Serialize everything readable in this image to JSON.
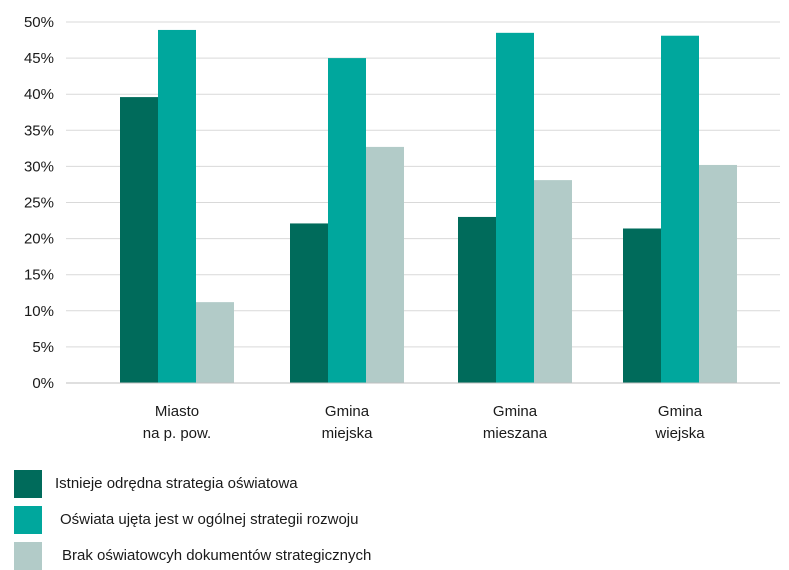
{
  "chart_data": {
    "type": "bar",
    "title": "",
    "xlabel": "",
    "ylabel": "",
    "ylim": [
      0,
      50
    ],
    "yticks": [
      0,
      5,
      10,
      15,
      20,
      25,
      30,
      35,
      40,
      45,
      50
    ],
    "ytick_labels": [
      "0%",
      "5%",
      "10%",
      "15%",
      "20%",
      "25%",
      "30%",
      "35%",
      "40%",
      "45%",
      "50%"
    ],
    "categories": [
      [
        "Miasto",
        "na p. pow."
      ],
      [
        "Gmina",
        "miejska"
      ],
      [
        "Gmina",
        "mieszana"
      ],
      [
        "Gmina",
        "wiejska"
      ]
    ],
    "series": [
      {
        "name": "Istnieje odrędna strategia oświatowa",
        "color": "#006b5b",
        "values": [
          39.6,
          22.1,
          23.0,
          21.4
        ]
      },
      {
        "name": "Oświata ujęta jest w ogólnej strategii rozwoju",
        "color": "#00a79d",
        "values": [
          48.9,
          45.0,
          48.5,
          48.1
        ]
      },
      {
        "name": "Brak oświatowcyh dokumentów strategicznych",
        "color": "#b2cbc8",
        "values": [
          11.2,
          32.7,
          28.1,
          30.2
        ]
      }
    ],
    "grid": true,
    "legend": "bottom-left"
  }
}
